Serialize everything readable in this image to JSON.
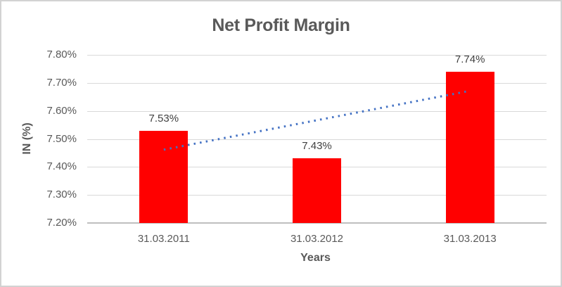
{
  "window": {
    "background": "#FFFFFF",
    "border_color": "#D2D2D2"
  },
  "chart_data": {
    "type": "bar",
    "title": "Net Profit Margin",
    "xlabel": "Years",
    "ylabel": "IN (%)",
    "categories": [
      "31.03.2011",
      "31.03.2012",
      "31.03.2013"
    ],
    "values": [
      7.53,
      7.43,
      7.74
    ],
    "value_labels": [
      "7.53%",
      "7.43%",
      "7.74%"
    ],
    "y_ticks": [
      "7.80%",
      "7.70%",
      "7.60%",
      "7.50%",
      "7.40%",
      "7.30%",
      "7.20%"
    ],
    "y_tick_values": [
      7.8,
      7.7,
      7.6,
      7.5,
      7.4,
      7.3,
      7.2
    ],
    "ylim": [
      7.2,
      7.8
    ],
    "grid": true,
    "legend": false,
    "bar_color": "#FF0000",
    "gridline_color": "#D9D9D9",
    "axis_line_color": "#BFBFBF",
    "text_color": "#595959",
    "value_label_color": "#404040",
    "trendline": {
      "type": "linear",
      "style": "dotted",
      "color": "#4472C4"
    }
  }
}
